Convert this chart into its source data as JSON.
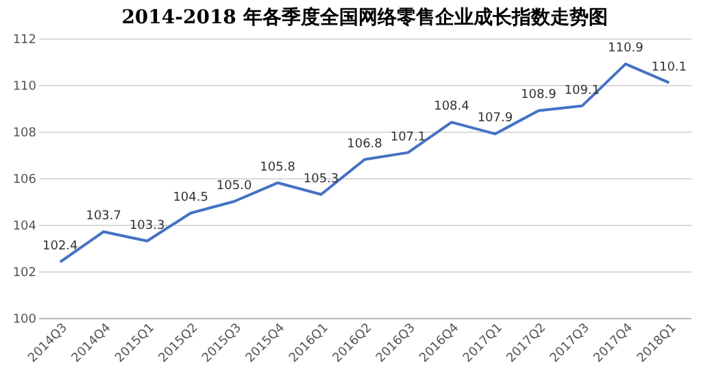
{
  "chart_data": {
    "type": "line",
    "title": "2014-2018 年各季度全国网络零售企业成长指数走势图",
    "categories": [
      "2014Q3",
      "2014Q4",
      "2015Q1",
      "2015Q2",
      "2015Q3",
      "2015Q4",
      "2016Q1",
      "2016Q2",
      "2016Q3",
      "2016Q4",
      "2017Q1",
      "2017Q2",
      "2017Q3",
      "2017Q4",
      "2018Q1"
    ],
    "series": [
      {
        "color": "#4472c4",
        "values": [
          102.4,
          103.7,
          103.3,
          104.5,
          105.0,
          105.8,
          105.3,
          106.8,
          107.1,
          108.4,
          107.9,
          108.9,
          109.1,
          110.9,
          110.1
        ]
      }
    ],
    "value_labels": [
      "102.4",
      "103.7",
      "103.3",
      "104.5",
      "105.0",
      "105.8",
      "105.3",
      "106.8",
      "107.1",
      "108.4",
      "107.9",
      "108.9",
      "109.1",
      "110.9",
      "110.1"
    ],
    "ylim": [
      100,
      112
    ],
    "yticks": [
      100,
      102,
      104,
      106,
      108,
      110,
      112
    ],
    "grid": "y",
    "marker": "none",
    "line_style": "solid"
  }
}
